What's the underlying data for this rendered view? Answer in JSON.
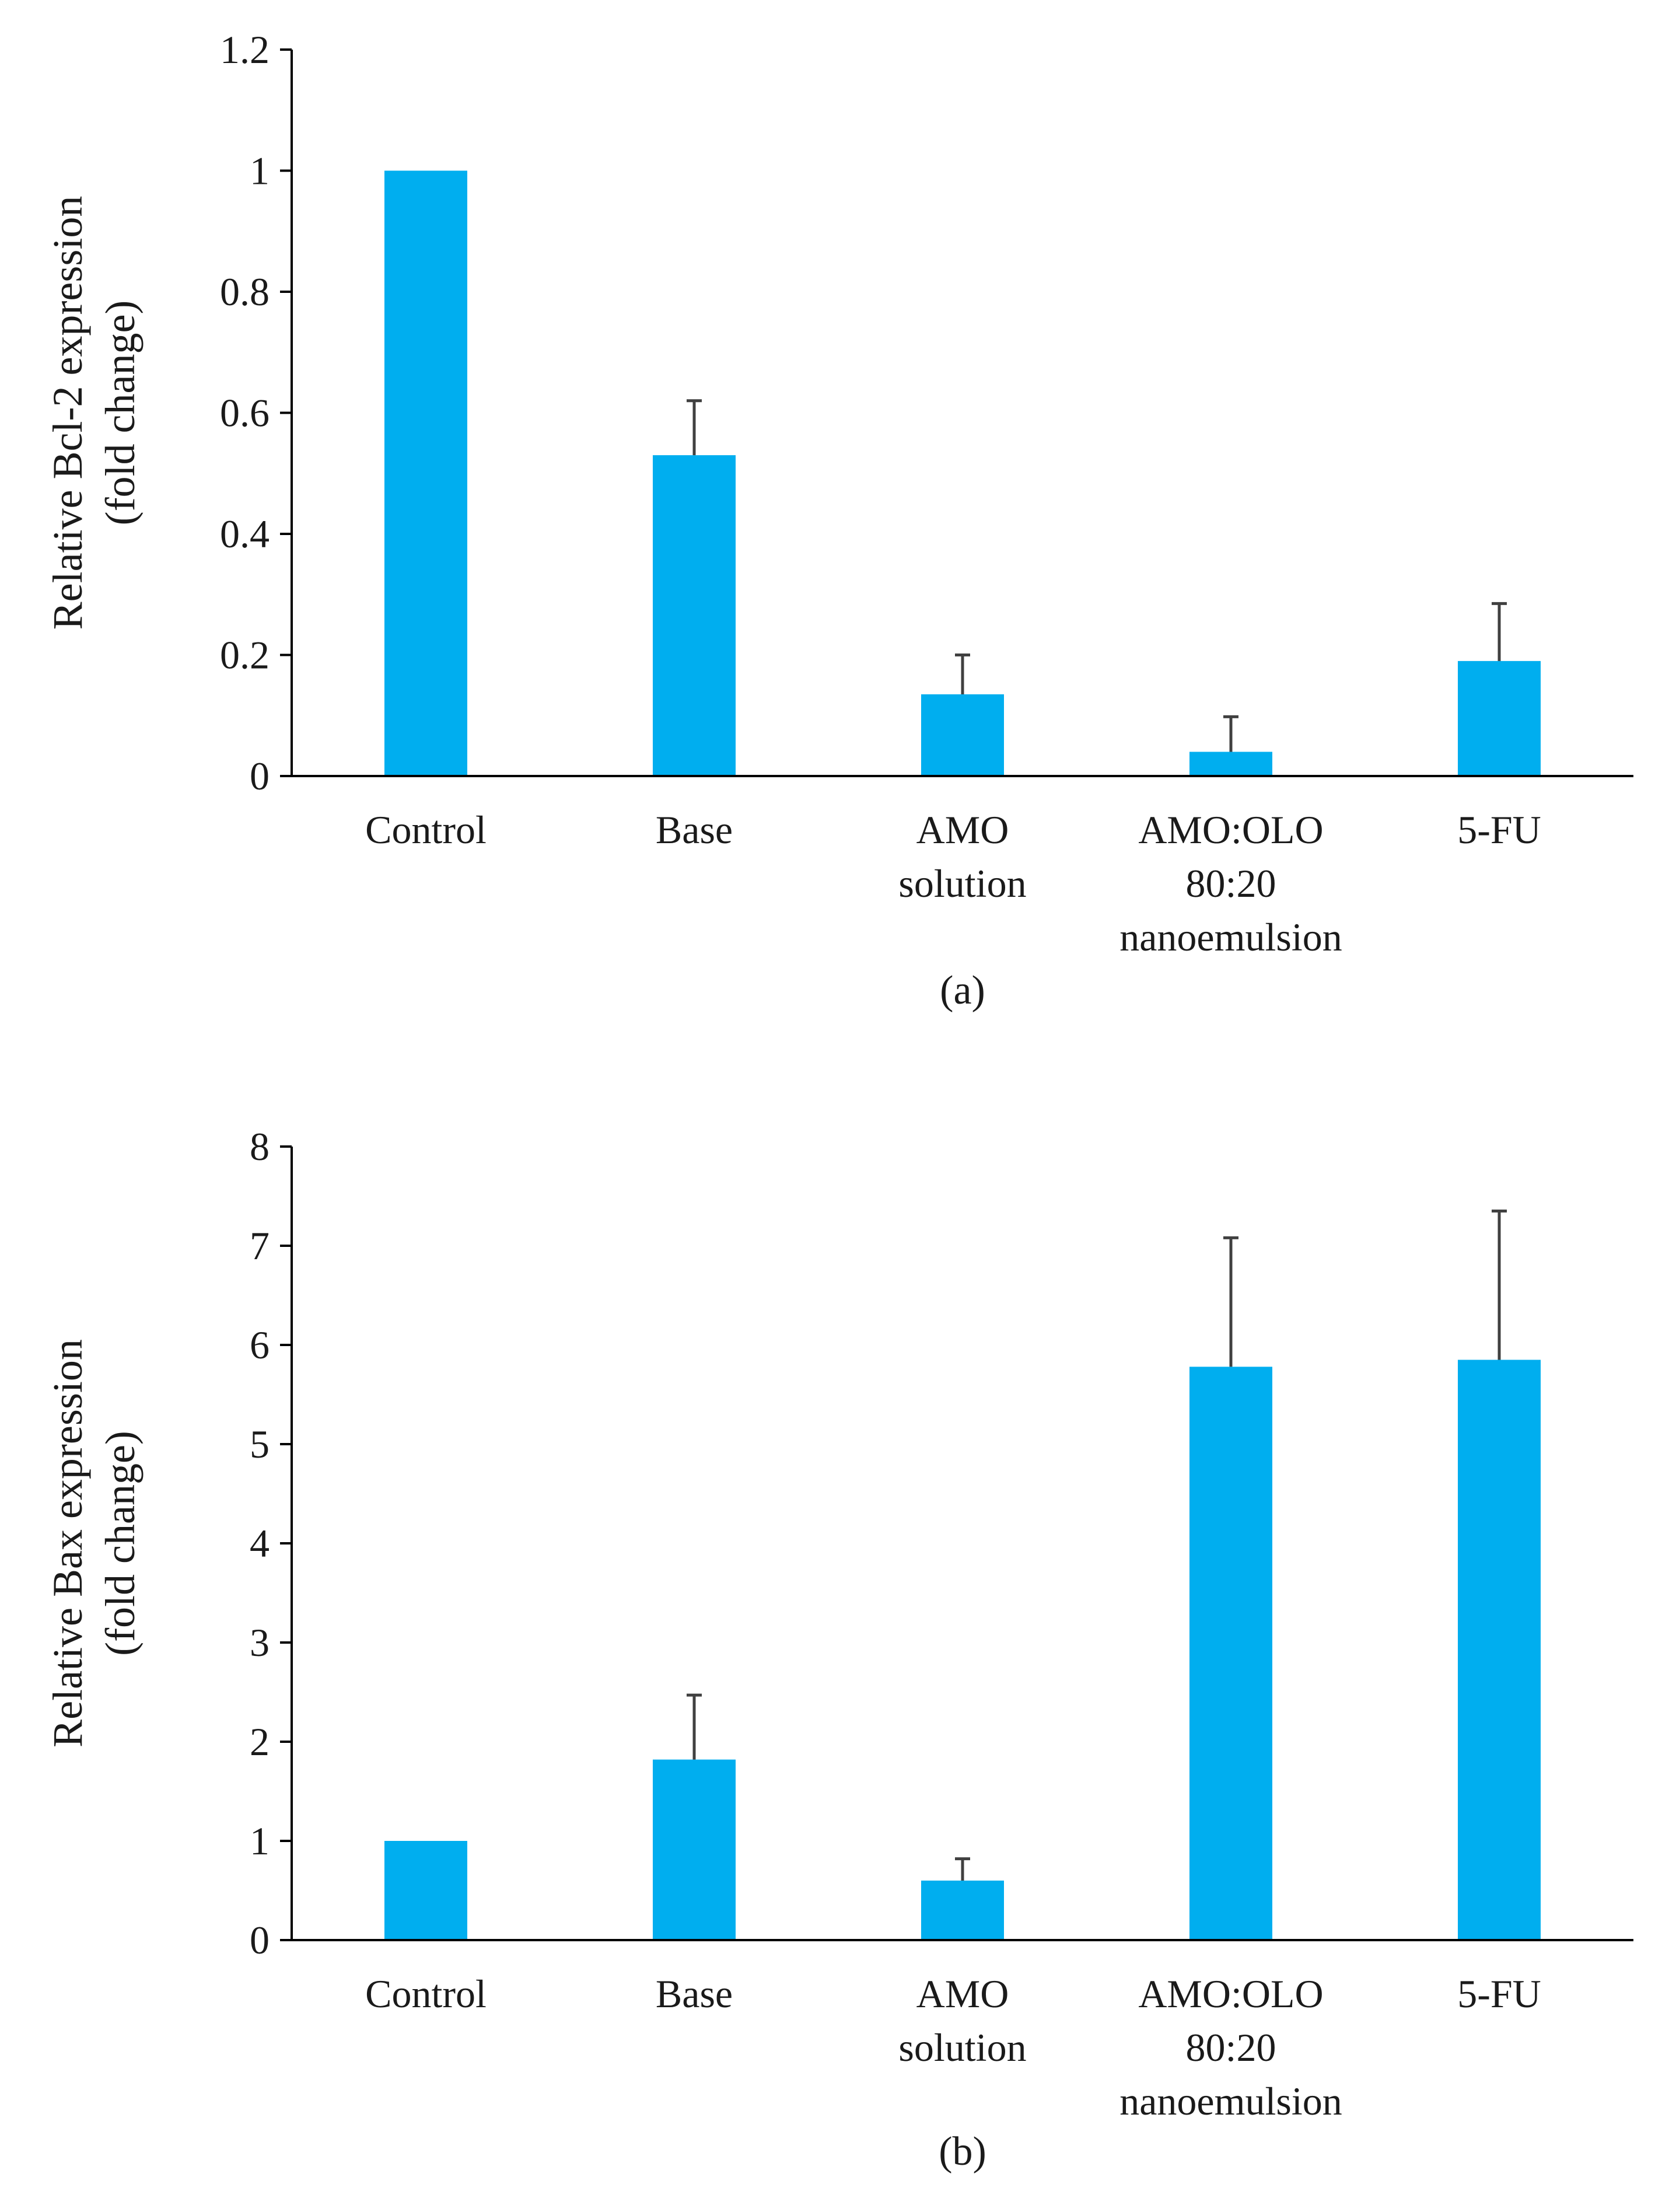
{
  "chart_data": [
    {
      "type": "bar",
      "panel_label": "(a)",
      "ylabel_lines": [
        "Relative  Bcl-2 expression",
        "(fold change)"
      ],
      "categories": [
        [
          "Control"
        ],
        [
          "Base"
        ],
        [
          "AMO",
          "solution"
        ],
        [
          "AMO:OLO",
          "80:20",
          "nanoemulsion"
        ],
        [
          "5-FU"
        ]
      ],
      "values": [
        1.0,
        0.53,
        0.135,
        0.04,
        0.19
      ],
      "errors": [
        0,
        0.09,
        0.065,
        0.058,
        0.095
      ],
      "ylim": [
        0,
        1.2
      ],
      "yticks": [
        0,
        0.2,
        0.4,
        0.6,
        0.8,
        1,
        1.2
      ],
      "ytick_labels": [
        "0",
        "0.2",
        "0.4",
        "0.6",
        "0.8",
        "1",
        "1.2"
      ],
      "bar_color": "#00AEEF",
      "error_color": "#404040",
      "axis_color": "#000000"
    },
    {
      "type": "bar",
      "panel_label": "(b)",
      "ylabel_lines": [
        "Relative Bax expression",
        "(fold change)"
      ],
      "categories": [
        [
          "Control"
        ],
        [
          "Base"
        ],
        [
          "AMO",
          "solution"
        ],
        [
          "AMO:OLO",
          "80:20",
          "nanoemulsion"
        ],
        [
          "5-FU"
        ]
      ],
      "values": [
        1.0,
        1.82,
        0.6,
        5.78,
        5.85
      ],
      "errors": [
        0,
        0.65,
        0.22,
        1.3,
        1.5
      ],
      "ylim": [
        0,
        8
      ],
      "yticks": [
        0,
        1,
        2,
        3,
        4,
        5,
        6,
        7,
        8
      ],
      "ytick_labels": [
        "0",
        "1",
        "2",
        "3",
        "4",
        "5",
        "6",
        "7",
        "8"
      ],
      "bar_color": "#00AEEF",
      "error_color": "#404040",
      "axis_color": "#000000"
    }
  ]
}
